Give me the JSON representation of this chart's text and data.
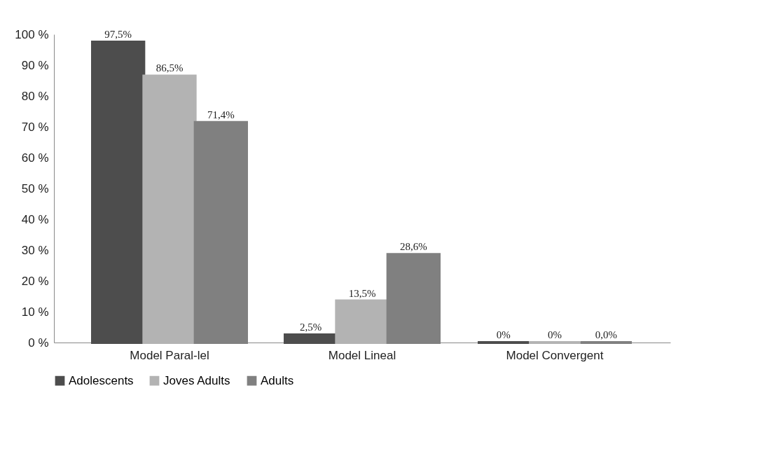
{
  "chart_data": {
    "type": "bar",
    "categories": [
      "Model Paral-lel",
      "Model Lineal",
      "Model Convergent"
    ],
    "series": [
      {
        "name": "Adolescents",
        "color": "#4d4d4d",
        "values": [
          97.5,
          2.5,
          0
        ],
        "value_labels": [
          "97,5%",
          "2,5%",
          "0%"
        ]
      },
      {
        "name": "Joves Adults",
        "color": "#b3b3b3",
        "values": [
          86.5,
          13.5,
          0
        ],
        "value_labels": [
          "86,5%",
          "13,5%",
          "0%"
        ]
      },
      {
        "name": "Adults",
        "color": "#808080",
        "values": [
          71.4,
          28.6,
          0
        ],
        "value_labels": [
          "71,4%",
          "28,6%",
          "0,0%"
        ]
      }
    ],
    "ylim": [
      0,
      100
    ],
    "yticks": [
      {
        "value": 0,
        "label": "0 %"
      },
      {
        "value": 10,
        "label": "10 %"
      },
      {
        "value": 20,
        "label": "20 %"
      },
      {
        "value": 30,
        "label": "30 %"
      },
      {
        "value": 40,
        "label": "40 %"
      },
      {
        "value": 50,
        "label": "50 %"
      },
      {
        "value": 60,
        "label": "60 %"
      },
      {
        "value": 70,
        "label": "70 %"
      },
      {
        "value": 80,
        "label": "80 %"
      },
      {
        "value": 90,
        "label": "90 %"
      },
      {
        "value": 100,
        "label": "100 %"
      }
    ],
    "grid": false,
    "legend": "bottom"
  }
}
